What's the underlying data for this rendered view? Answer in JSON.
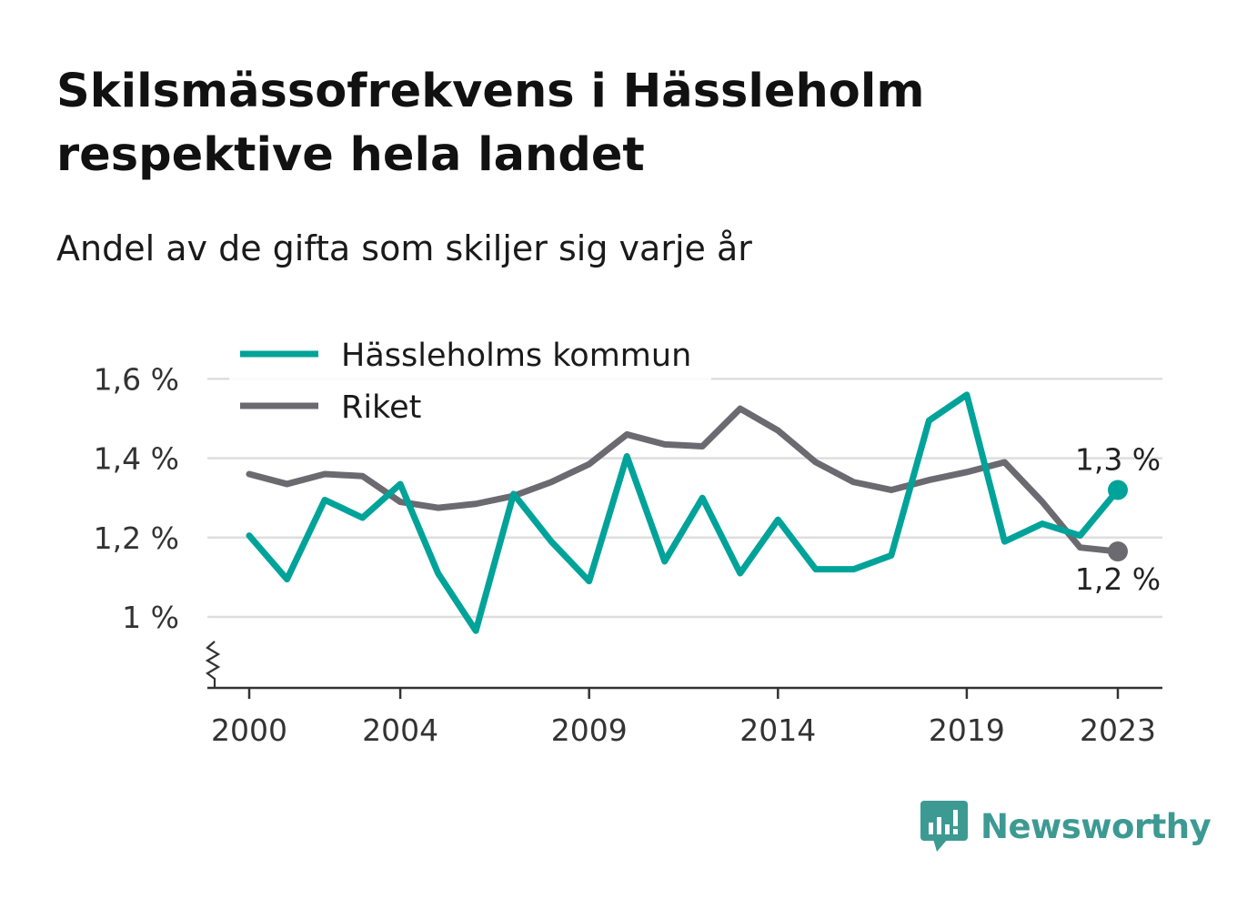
{
  "chart_data": {
    "type": "line",
    "title": "Skilsmässofrekvens i Hässleholm respektive hela landet",
    "subtitle": "Andel av de gifta som skiljer sig varje år",
    "x": [
      2000,
      2001,
      2002,
      2003,
      2004,
      2005,
      2006,
      2007,
      2008,
      2009,
      2010,
      2011,
      2012,
      2013,
      2014,
      2015,
      2016,
      2017,
      2018,
      2019,
      2020,
      2021,
      2022,
      2023
    ],
    "x_ticks": [
      "2000",
      "2004",
      "2009",
      "2014",
      "2019",
      "2023"
    ],
    "y_ticks": [
      "1 %",
      "1,2 %",
      "1,4 %",
      "1,6 %"
    ],
    "ylim": [
      0.82,
      1.62
    ],
    "grid": true,
    "legend_position": "top-left",
    "series": [
      {
        "name": "Hässleholms kommun",
        "color": "#00a399",
        "values": [
          1.205,
          1.095,
          1.295,
          1.25,
          1.335,
          1.11,
          0.965,
          1.31,
          1.19,
          1.09,
          1.405,
          1.14,
          1.3,
          1.11,
          1.245,
          1.12,
          1.12,
          1.155,
          1.495,
          1.56,
          1.19,
          1.235,
          1.205,
          1.32
        ],
        "end_label": "1,3 %"
      },
      {
        "name": "Riket",
        "color": "#6b6a70",
        "values": [
          1.36,
          1.335,
          1.36,
          1.355,
          1.29,
          1.275,
          1.285,
          1.305,
          1.34,
          1.385,
          1.46,
          1.435,
          1.43,
          1.525,
          1.47,
          1.39,
          1.34,
          1.32,
          1.345,
          1.365,
          1.39,
          1.29,
          1.175,
          1.165
        ],
        "end_label": "1,2 %"
      }
    ]
  },
  "logo": {
    "text": "Newsworthy",
    "color": "#3d9a93",
    "icon": "bar-chart-speech-bubble-icon"
  }
}
